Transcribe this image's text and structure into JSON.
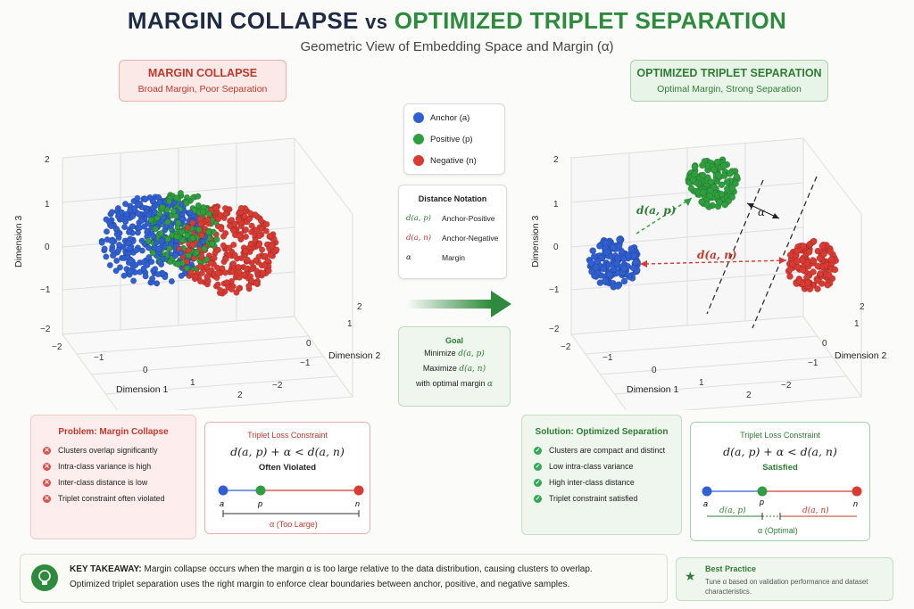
{
  "header": {
    "title_left": "MARGIN COLLAPSE",
    "title_vs": "vs",
    "title_right": "OPTIMIZED TRIPLET SEPARATION",
    "subtitle": "Geometric View of Embedding Space and Margin (α)"
  },
  "left_panel": {
    "heading": "MARGIN COLLAPSE",
    "subheading": "Broad Margin, Poor Separation",
    "axis_x_label": "Dimension 1",
    "axis_y_label": "Dimension 2",
    "axis_z_label": "Dimension 3",
    "ticks": [
      "−2",
      "−1",
      "0",
      "1",
      "2"
    ]
  },
  "right_panel": {
    "heading": "OPTIMIZED TRIPLET SEPARATION",
    "subheading": "Optimal Margin, Strong Separation",
    "axis_x_label": "Dimension 1",
    "axis_y_label": "Dimension 2",
    "axis_z_label": "Dimension 3",
    "label_dap": "d(a, p)",
    "label_dan": "d(a, n)",
    "label_alpha": "α"
  },
  "legend": {
    "items": [
      {
        "label": "Anchor (a)",
        "color": "#2f5fd0"
      },
      {
        "label": "Positive (p)",
        "color": "#2e9e3e"
      },
      {
        "label": "Negative (n)",
        "color": "#d93a32"
      }
    ]
  },
  "notation": {
    "heading": "Distance Notation",
    "rows": [
      {
        "symbol": "d(a, p)",
        "text": "Anchor-Positive",
        "color": "#2e7d32"
      },
      {
        "symbol": "d(a, n)",
        "text": "Anchor-Negative",
        "color": "#c0392b"
      },
      {
        "symbol": "α",
        "text": "Margin",
        "color": "#222222"
      }
    ]
  },
  "goal": {
    "heading": "Goal",
    "line1_text": "Minimize ",
    "line1_math": "d(a, p)",
    "line2_text": "Maximize ",
    "line2_math": "d(a, n)",
    "line3_text": "with optimal margin ",
    "line3_math": "α"
  },
  "problem": {
    "heading": "Problem: Margin Collapse",
    "items": [
      "Clusters overlap significantly",
      "Intra-class variance is high",
      "Inter-class distance is low",
      "Triplet constraint often violated"
    ]
  },
  "constraint_left": {
    "heading": "Triplet Loss Constraint",
    "equation": "d(a, p) + α < d(a, n)",
    "status": "Often Violated",
    "label_a": "a",
    "label_p": "p",
    "label_n": "n",
    "span_label": "α (Too Large)"
  },
  "solution": {
    "heading": "Solution: Optimized Separation",
    "items": [
      "Clusters are compact and distinct",
      "Low intra-class variance",
      "High inter-class distance",
      "Triplet constraint satisfied"
    ]
  },
  "constraint_right": {
    "heading": "Triplet Loss Constraint",
    "equation": "d(a, p) + α < d(a, n)",
    "status": "Satisfied",
    "label_a": "a",
    "label_p": "p",
    "label_n": "n",
    "label_dap": "d(a, p)",
    "label_dan": "d(a, n)",
    "span_label": "α (Optimal)"
  },
  "takeaway": {
    "label": "KEY TAKEAWAY:",
    "line1": "Margin collapse occurs when the margin α is too large relative to the data distribution, causing clusters to overlap.",
    "line2": "Optimized triplet separation uses the right margin to enforce clear boundaries between anchor, positive, and negative samples."
  },
  "best_practice": {
    "heading": "Best Practice",
    "text": "Tune α based on validation performance and dataset characteristics."
  }
}
